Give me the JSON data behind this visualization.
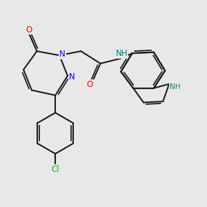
{
  "bg_color": "#e8e8e8",
  "bond_color": "#1a1a1a",
  "bond_width": 1.5,
  "atom_colors": {
    "N": "#0000ff",
    "O": "#ff0000",
    "Cl": "#00bb00",
    "NH_amide": "#008080",
    "NH_indole": "#008080",
    "C": "#1a1a1a"
  },
  "font_size": 8.5,
  "font_size_small": 7.5
}
